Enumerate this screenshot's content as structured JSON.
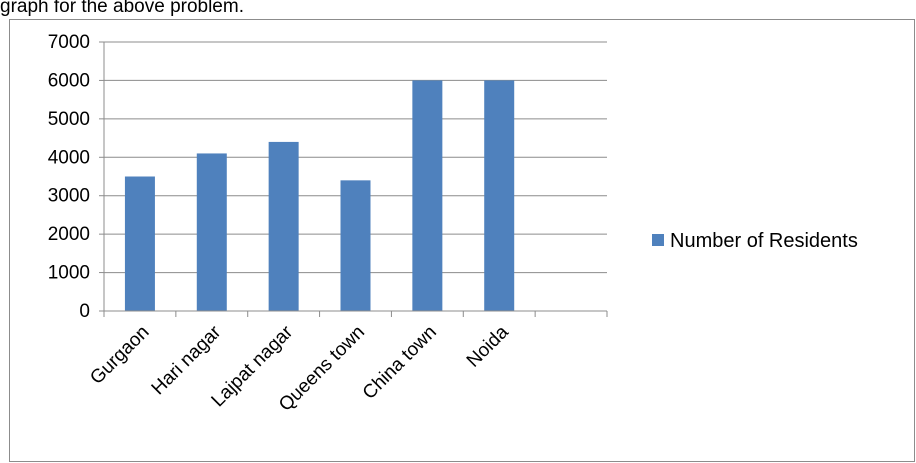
{
  "header": {
    "text": "graph for the above problem."
  },
  "chart_data": {
    "type": "bar",
    "categories": [
      "Gurgaon",
      "Hari nagar",
      "Lajpat nagar",
      "Queens town",
      "China town",
      "Noida"
    ],
    "slots": 7,
    "series": [
      {
        "name": "Number of Residents",
        "color": "#4f81bd",
        "values": [
          3500,
          4100,
          4400,
          3400,
          6000,
          6000
        ]
      }
    ],
    "ylim": [
      0,
      7000
    ],
    "yticks": [
      0,
      1000,
      2000,
      3000,
      4000,
      5000,
      6000,
      7000
    ],
    "grid": true,
    "legend": "right"
  }
}
